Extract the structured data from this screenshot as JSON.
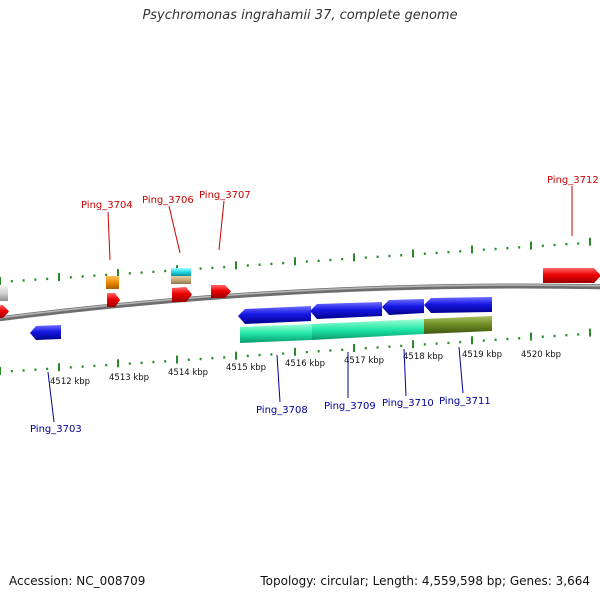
{
  "title": "Psychromonas ingrahamii 37, complete genome",
  "footer": {
    "accession": "Accession: NC_008709",
    "summary": "Topology: circular; Length: 4,559,598 bp; Genes: 3,664"
  },
  "colors": {
    "forward_label": "#cc0000",
    "reverse_label": "#000099",
    "backbone": "#8c8c8c",
    "tick_forward": "#2a8a2a",
    "tick_reverse": "#2a8a2a"
  },
  "ticks": {
    "labels": [
      "4512 kbp",
      "4513 kbp",
      "4514 kbp",
      "4515 kbp",
      "4516 kbp",
      "4517 kbp",
      "4518 kbp",
      "4519 kbp",
      "4520 kbp"
    ]
  },
  "labels": {
    "forward": [
      "Ping_3704",
      "Ping_3706",
      "Ping_3707",
      "Ping_3712"
    ],
    "reverse": [
      "Ping_3703",
      "Ping_3708",
      "Ping_3709",
      "Ping_3710",
      "Ping_3711"
    ]
  }
}
